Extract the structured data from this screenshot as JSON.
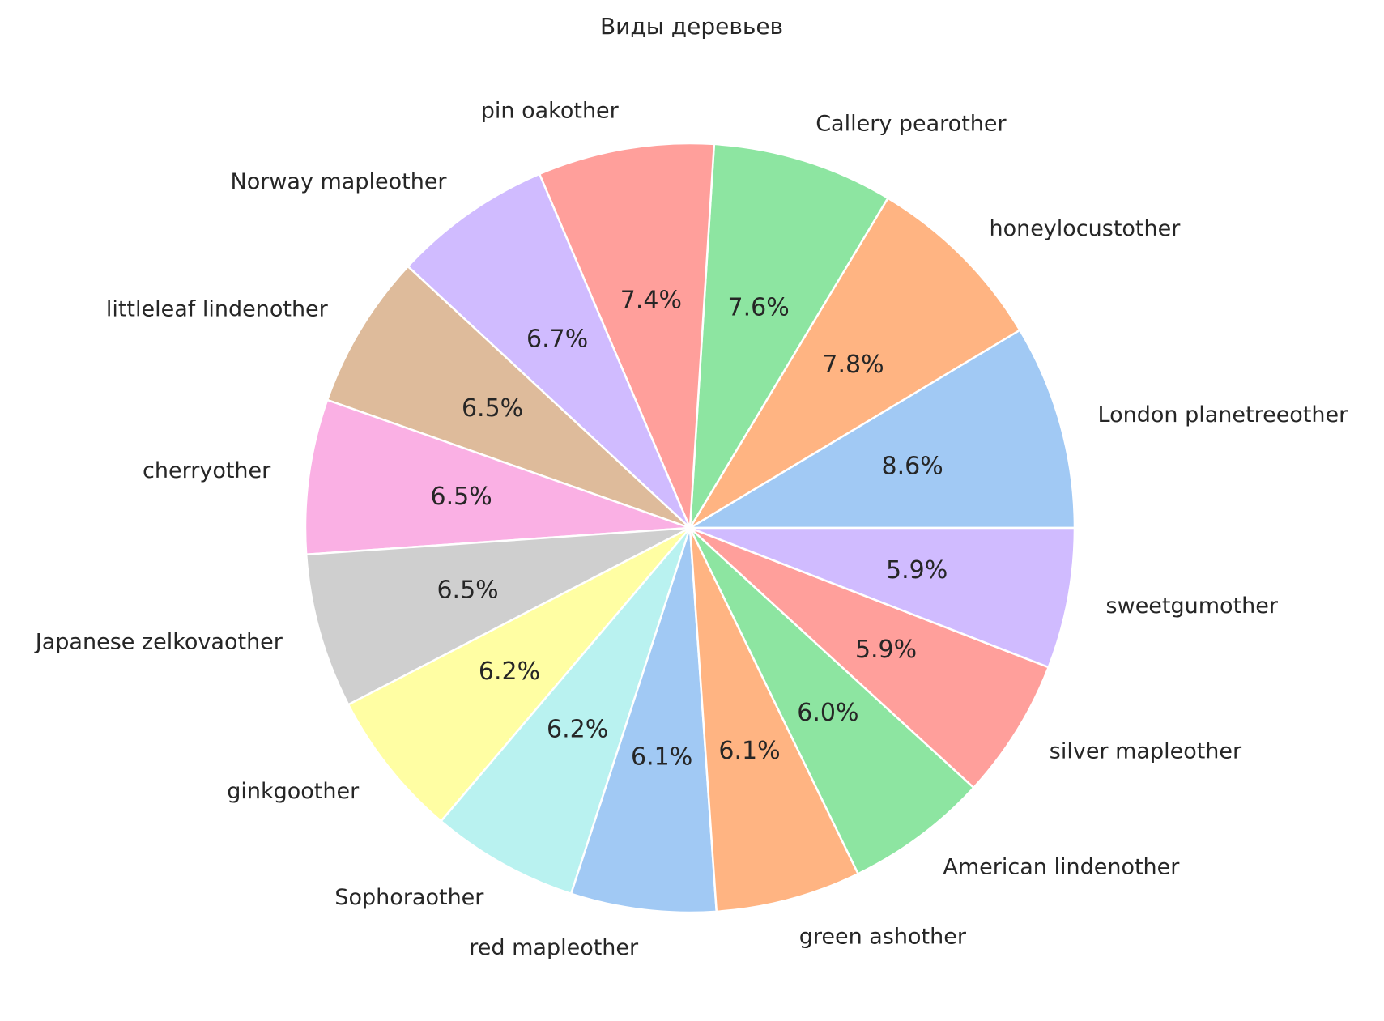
{
  "chart_data": {
    "type": "pie",
    "title": "Виды деревьев",
    "start_angle_deg": 0,
    "direction": "counterclockwise",
    "slices": [
      {
        "label": "London planetreeother",
        "value": 8.6,
        "pct_label": "8.6%",
        "color": "#a1c9f4"
      },
      {
        "label": "honeylocustother",
        "value": 7.8,
        "pct_label": "7.8%",
        "color": "#ffb482"
      },
      {
        "label": "Callery pearother",
        "value": 7.6,
        "pct_label": "7.6%",
        "color": "#8de5a1"
      },
      {
        "label": "pin oakother",
        "value": 7.4,
        "pct_label": "7.4%",
        "color": "#ff9f9b"
      },
      {
        "label": "Norway mapleother",
        "value": 6.7,
        "pct_label": "6.7%",
        "color": "#d0bbff"
      },
      {
        "label": "littleleaf lindenother",
        "value": 6.5,
        "pct_label": "6.5%",
        "color": "#debb9b"
      },
      {
        "label": "cherryother",
        "value": 6.5,
        "pct_label": "6.5%",
        "color": "#fab0e4"
      },
      {
        "label": "Japanese zelkovaother",
        "value": 6.5,
        "pct_label": "6.5%",
        "color": "#cfcfcf"
      },
      {
        "label": "ginkgoother",
        "value": 6.2,
        "pct_label": "6.2%",
        "color": "#fffea3"
      },
      {
        "label": "Sophoraother",
        "value": 6.2,
        "pct_label": "6.2%",
        "color": "#b9f2f0"
      },
      {
        "label": "red mapleother",
        "value": 6.1,
        "pct_label": "6.1%",
        "color": "#a1c9f4"
      },
      {
        "label": "green ashother",
        "value": 6.1,
        "pct_label": "6.1%",
        "color": "#ffb482"
      },
      {
        "label": "American lindenother",
        "value": 6.0,
        "pct_label": "6.0%",
        "color": "#8de5a1"
      },
      {
        "label": "silver mapleother",
        "value": 5.9,
        "pct_label": "5.9%",
        "color": "#ff9f9b"
      },
      {
        "label": "sweetgumother",
        "value": 5.9,
        "pct_label": "5.9%",
        "color": "#d0bbff"
      }
    ]
  }
}
